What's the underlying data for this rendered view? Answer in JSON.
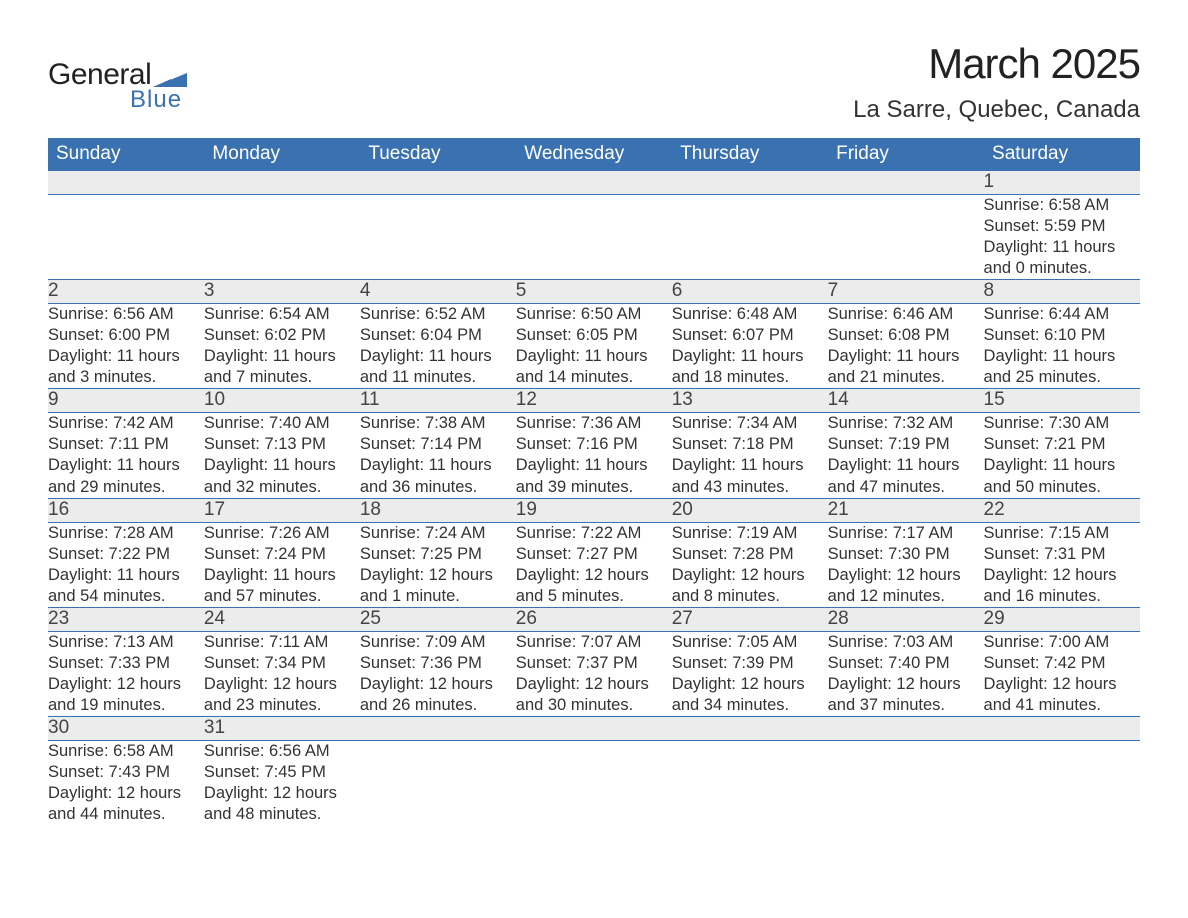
{
  "brand": {
    "word1": "General",
    "word2": "Blue",
    "flag_color": "#3a71b0",
    "text_color_dark": "#222222",
    "text_color_blue": "#3a71b0"
  },
  "title": "March 2025",
  "location": "La Sarre, Quebec, Canada",
  "colors": {
    "header_bg": "#3a71b0",
    "header_text": "#ffffff",
    "daynum_bg": "#ececec",
    "row_divider": "#3a71b0",
    "body_text": "#333333",
    "page_bg": "#ffffff"
  },
  "fonts": {
    "title_size_pt": 32,
    "location_size_pt": 18,
    "weekday_size_pt": 14,
    "daynum_size_pt": 14,
    "cell_size_pt": 12
  },
  "weekdays": [
    "Sunday",
    "Monday",
    "Tuesday",
    "Wednesday",
    "Thursday",
    "Friday",
    "Saturday"
  ],
  "weeks": [
    [
      null,
      null,
      null,
      null,
      null,
      null,
      {
        "n": "1",
        "sunrise": "Sunrise: 6:58 AM",
        "sunset": "Sunset: 5:59 PM",
        "day1": "Daylight: 11 hours",
        "day2": "and 0 minutes."
      }
    ],
    [
      {
        "n": "2",
        "sunrise": "Sunrise: 6:56 AM",
        "sunset": "Sunset: 6:00 PM",
        "day1": "Daylight: 11 hours",
        "day2": "and 3 minutes."
      },
      {
        "n": "3",
        "sunrise": "Sunrise: 6:54 AM",
        "sunset": "Sunset: 6:02 PM",
        "day1": "Daylight: 11 hours",
        "day2": "and 7 minutes."
      },
      {
        "n": "4",
        "sunrise": "Sunrise: 6:52 AM",
        "sunset": "Sunset: 6:04 PM",
        "day1": "Daylight: 11 hours",
        "day2": "and 11 minutes."
      },
      {
        "n": "5",
        "sunrise": "Sunrise: 6:50 AM",
        "sunset": "Sunset: 6:05 PM",
        "day1": "Daylight: 11 hours",
        "day2": "and 14 minutes."
      },
      {
        "n": "6",
        "sunrise": "Sunrise: 6:48 AM",
        "sunset": "Sunset: 6:07 PM",
        "day1": "Daylight: 11 hours",
        "day2": "and 18 minutes."
      },
      {
        "n": "7",
        "sunrise": "Sunrise: 6:46 AM",
        "sunset": "Sunset: 6:08 PM",
        "day1": "Daylight: 11 hours",
        "day2": "and 21 minutes."
      },
      {
        "n": "8",
        "sunrise": "Sunrise: 6:44 AM",
        "sunset": "Sunset: 6:10 PM",
        "day1": "Daylight: 11 hours",
        "day2": "and 25 minutes."
      }
    ],
    [
      {
        "n": "9",
        "sunrise": "Sunrise: 7:42 AM",
        "sunset": "Sunset: 7:11 PM",
        "day1": "Daylight: 11 hours",
        "day2": "and 29 minutes."
      },
      {
        "n": "10",
        "sunrise": "Sunrise: 7:40 AM",
        "sunset": "Sunset: 7:13 PM",
        "day1": "Daylight: 11 hours",
        "day2": "and 32 minutes."
      },
      {
        "n": "11",
        "sunrise": "Sunrise: 7:38 AM",
        "sunset": "Sunset: 7:14 PM",
        "day1": "Daylight: 11 hours",
        "day2": "and 36 minutes."
      },
      {
        "n": "12",
        "sunrise": "Sunrise: 7:36 AM",
        "sunset": "Sunset: 7:16 PM",
        "day1": "Daylight: 11 hours",
        "day2": "and 39 minutes."
      },
      {
        "n": "13",
        "sunrise": "Sunrise: 7:34 AM",
        "sunset": "Sunset: 7:18 PM",
        "day1": "Daylight: 11 hours",
        "day2": "and 43 minutes."
      },
      {
        "n": "14",
        "sunrise": "Sunrise: 7:32 AM",
        "sunset": "Sunset: 7:19 PM",
        "day1": "Daylight: 11 hours",
        "day2": "and 47 minutes."
      },
      {
        "n": "15",
        "sunrise": "Sunrise: 7:30 AM",
        "sunset": "Sunset: 7:21 PM",
        "day1": "Daylight: 11 hours",
        "day2": "and 50 minutes."
      }
    ],
    [
      {
        "n": "16",
        "sunrise": "Sunrise: 7:28 AM",
        "sunset": "Sunset: 7:22 PM",
        "day1": "Daylight: 11 hours",
        "day2": "and 54 minutes."
      },
      {
        "n": "17",
        "sunrise": "Sunrise: 7:26 AM",
        "sunset": "Sunset: 7:24 PM",
        "day1": "Daylight: 11 hours",
        "day2": "and 57 minutes."
      },
      {
        "n": "18",
        "sunrise": "Sunrise: 7:24 AM",
        "sunset": "Sunset: 7:25 PM",
        "day1": "Daylight: 12 hours",
        "day2": "and 1 minute."
      },
      {
        "n": "19",
        "sunrise": "Sunrise: 7:22 AM",
        "sunset": "Sunset: 7:27 PM",
        "day1": "Daylight: 12 hours",
        "day2": "and 5 minutes."
      },
      {
        "n": "20",
        "sunrise": "Sunrise: 7:19 AM",
        "sunset": "Sunset: 7:28 PM",
        "day1": "Daylight: 12 hours",
        "day2": "and 8 minutes."
      },
      {
        "n": "21",
        "sunrise": "Sunrise: 7:17 AM",
        "sunset": "Sunset: 7:30 PM",
        "day1": "Daylight: 12 hours",
        "day2": "and 12 minutes."
      },
      {
        "n": "22",
        "sunrise": "Sunrise: 7:15 AM",
        "sunset": "Sunset: 7:31 PM",
        "day1": "Daylight: 12 hours",
        "day2": "and 16 minutes."
      }
    ],
    [
      {
        "n": "23",
        "sunrise": "Sunrise: 7:13 AM",
        "sunset": "Sunset: 7:33 PM",
        "day1": "Daylight: 12 hours",
        "day2": "and 19 minutes."
      },
      {
        "n": "24",
        "sunrise": "Sunrise: 7:11 AM",
        "sunset": "Sunset: 7:34 PM",
        "day1": "Daylight: 12 hours",
        "day2": "and 23 minutes."
      },
      {
        "n": "25",
        "sunrise": "Sunrise: 7:09 AM",
        "sunset": "Sunset: 7:36 PM",
        "day1": "Daylight: 12 hours",
        "day2": "and 26 minutes."
      },
      {
        "n": "26",
        "sunrise": "Sunrise: 7:07 AM",
        "sunset": "Sunset: 7:37 PM",
        "day1": "Daylight: 12 hours",
        "day2": "and 30 minutes."
      },
      {
        "n": "27",
        "sunrise": "Sunrise: 7:05 AM",
        "sunset": "Sunset: 7:39 PM",
        "day1": "Daylight: 12 hours",
        "day2": "and 34 minutes."
      },
      {
        "n": "28",
        "sunrise": "Sunrise: 7:03 AM",
        "sunset": "Sunset: 7:40 PM",
        "day1": "Daylight: 12 hours",
        "day2": "and 37 minutes."
      },
      {
        "n": "29",
        "sunrise": "Sunrise: 7:00 AM",
        "sunset": "Sunset: 7:42 PM",
        "day1": "Daylight: 12 hours",
        "day2": "and 41 minutes."
      }
    ],
    [
      {
        "n": "30",
        "sunrise": "Sunrise: 6:58 AM",
        "sunset": "Sunset: 7:43 PM",
        "day1": "Daylight: 12 hours",
        "day2": "and 44 minutes."
      },
      {
        "n": "31",
        "sunrise": "Sunrise: 6:56 AM",
        "sunset": "Sunset: 7:45 PM",
        "day1": "Daylight: 12 hours",
        "day2": "and 48 minutes."
      },
      null,
      null,
      null,
      null,
      null
    ]
  ]
}
